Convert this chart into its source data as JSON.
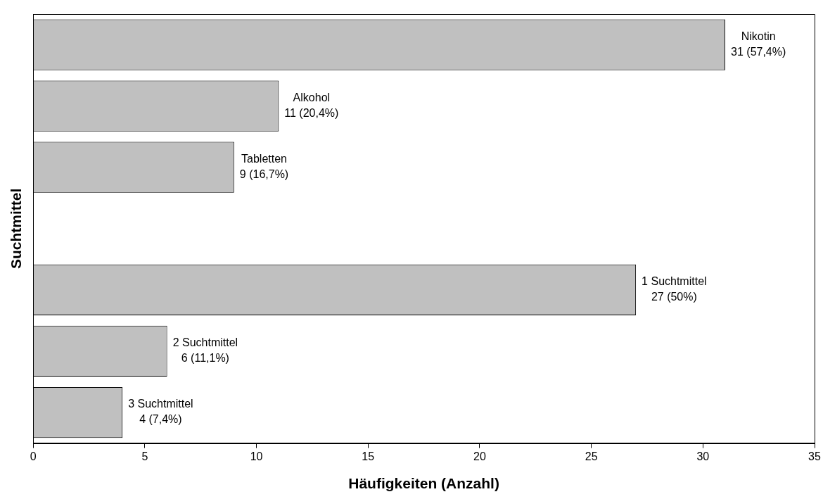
{
  "chart_data": {
    "type": "bar",
    "orientation": "horizontal",
    "xlabel": "Häufigkeiten (Anzahl)",
    "ylabel": "Suchtmittel",
    "categories": [
      "Nikotin",
      "Alkohol",
      "Tabletten",
      null,
      "1 Suchtmittel",
      "2 Suchtmittel",
      "3 Suchtmittel"
    ],
    "values": [
      31,
      11,
      9,
      null,
      27,
      6,
      4
    ],
    "value_labels": [
      "31 (57,4%)",
      "11 (20,4%)",
      "9 (16,7%)",
      null,
      "27 (50%)",
      "6 (11,1%)",
      "4 (7,4%)"
    ],
    "color": "#c0c0c0",
    "xlim": [
      0,
      35
    ],
    "xticks": [
      0,
      5,
      10,
      15,
      20,
      25,
      30,
      35
    ],
    "grid": false,
    "legend": false,
    "tick_labels": "x"
  }
}
